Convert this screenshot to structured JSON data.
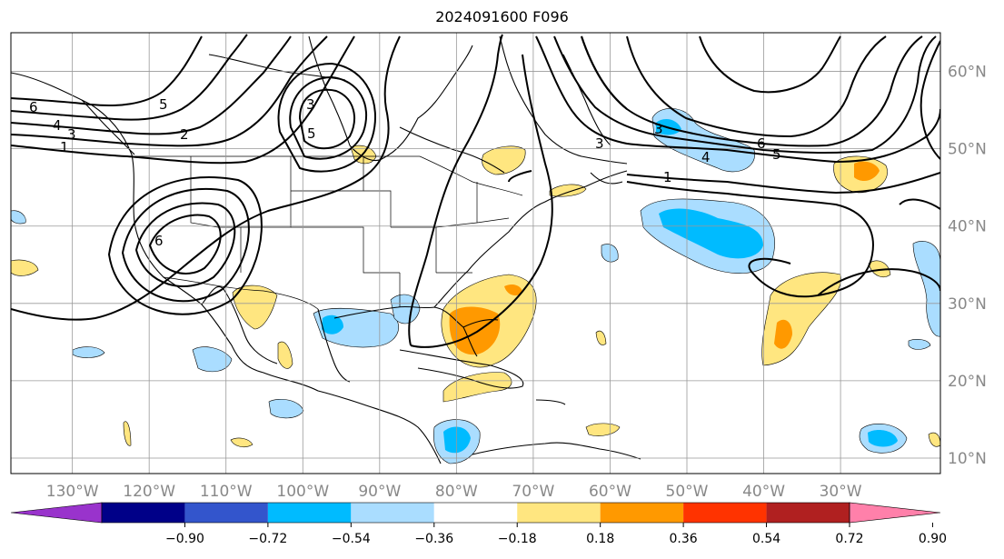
{
  "title": "2024091600 F096",
  "map": {
    "lon_range": [
      -138,
      -17
    ],
    "lat_range": [
      8,
      65
    ],
    "lon_ticks": [
      -130,
      -120,
      -110,
      -100,
      -90,
      -80,
      -70,
      -60,
      -50,
      -40,
      -30
    ],
    "lat_ticks": [
      10,
      20,
      30,
      40,
      50,
      60
    ],
    "lon_tick_labels": [
      "130°W",
      "120°W",
      "110°W",
      "100°W",
      "90°W",
      "80°W",
      "70°W",
      "60°W",
      "50°W",
      "40°W",
      "30°W"
    ],
    "lat_tick_labels": [
      "10°N",
      "20°N",
      "30°N",
      "40°N",
      "50°N",
      "60°N"
    ],
    "grid": true,
    "contour_labels": [
      "6",
      "4",
      "3",
      "1",
      "5",
      "2",
      "3",
      "5",
      "3",
      "6",
      "5",
      "4",
      "1",
      "3",
      "6"
    ]
  },
  "colorbar": {
    "colors": [
      "#9933cc",
      "#000088",
      "#3355cc",
      "#00bbff",
      "#aaddff",
      "#ffffff",
      "#ffe680",
      "#ff9900",
      "#ff3300",
      "#b02020",
      "#ff80aa"
    ],
    "ticks": [
      "−0.90",
      "−0.72",
      "−0.54",
      "−0.36",
      "−0.18",
      "0.18",
      "0.36",
      "0.54",
      "0.72",
      "0.90"
    ],
    "extend": "both"
  }
}
